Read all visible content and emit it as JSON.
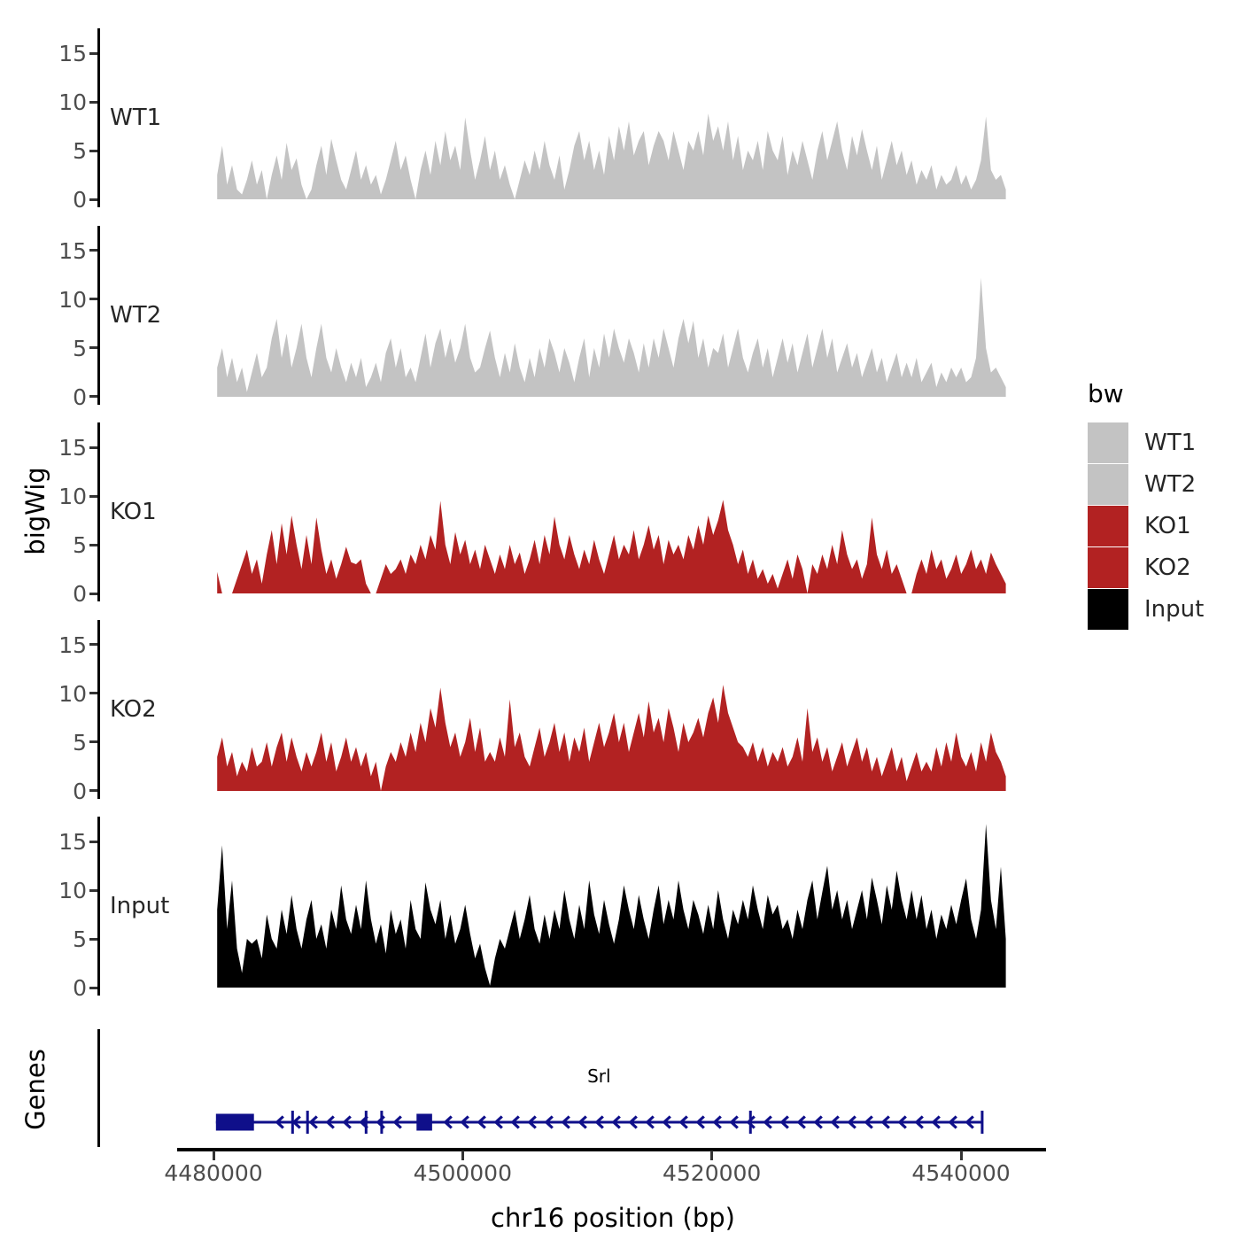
{
  "axes": {
    "y_title": "bigWig",
    "genes_title": "Genes",
    "x_title": "chr16 position (bp)",
    "x_tick_labels": [
      "4480000",
      "4500000",
      "4520000",
      "4540000"
    ],
    "y_tick_labels": [
      "0",
      "5",
      "10",
      "15"
    ]
  },
  "legend": {
    "title": "bw",
    "items": [
      {
        "label": "WT1",
        "color": "#c3c3c3"
      },
      {
        "label": "WT2",
        "color": "#c3c3c3"
      },
      {
        "label": "KO1",
        "color": "#b22222"
      },
      {
        "label": "KO2",
        "color": "#b22222"
      },
      {
        "label": "Input",
        "color": "#000000"
      }
    ]
  },
  "gene_label": "Srl",
  "chart_data": {
    "type": "area",
    "title": "",
    "xlabel": "chr16 position (bp)",
    "ylabel": "bigWig",
    "x_domain_bp": [
      4477000,
      4547000
    ],
    "x_ticks_bp": [
      4480000,
      4500000,
      4520000,
      4540000
    ],
    "ylim": [
      0,
      17.5
    ],
    "yticks": [
      0,
      5,
      10,
      15
    ],
    "grid": false,
    "legend_position": "right",
    "coverage_x_range_bp": [
      4480300,
      4543600
    ],
    "tracks": [
      {
        "name": "WT1",
        "color": "#c3c3c3",
        "values": [
          2.5,
          5.5,
          1.5,
          3.5,
          1,
          0.5,
          2,
          4,
          1.5,
          3,
          0,
          2.5,
          4.5,
          2,
          5.8,
          3,
          4.2,
          1.5,
          0,
          1,
          3.5,
          5.5,
          2.5,
          6.2,
          4,
          2,
          1,
          3,
          5,
          2,
          3.5,
          1.5,
          2.5,
          0.5,
          2,
          4,
          6,
          3,
          4.5,
          2,
          0,
          3,
          5,
          2.5,
          6,
          3.5,
          7,
          4,
          5.5,
          3,
          8.4,
          5,
          2,
          4,
          6.5,
          3,
          5,
          2,
          3.5,
          1.5,
          0,
          2,
          4,
          2.5,
          5,
          3,
          6,
          3.5,
          2,
          4.5,
          1,
          3,
          5.5,
          7,
          4,
          6,
          3,
          5,
          2.5,
          6.5,
          4,
          7.5,
          5,
          8,
          4.5,
          6,
          7,
          3.5,
          5.5,
          7,
          6,
          4,
          7,
          5,
          3,
          6,
          5,
          7,
          4.5,
          8.8,
          6,
          7.5,
          5,
          8,
          4,
          6.5,
          3,
          5,
          4,
          6,
          3,
          7,
          5,
          4,
          6.5,
          2.5,
          5,
          3.5,
          6,
          4,
          2,
          5,
          7,
          4,
          6,
          8,
          5,
          3,
          6.5,
          4.5,
          7.2,
          5,
          3,
          5.5,
          2,
          4,
          6,
          3.5,
          5,
          2.5,
          4,
          1.5,
          3,
          2,
          3.5,
          1,
          2.5,
          1.5,
          2,
          3.5,
          1.5,
          2.5,
          1,
          2,
          4,
          8.5,
          3,
          2,
          2.5,
          1
        ]
      },
      {
        "name": "WT2",
        "color": "#c3c3c3",
        "values": [
          3,
          5,
          2,
          4,
          1.5,
          3,
          0.5,
          2.5,
          4.5,
          2,
          3,
          6,
          8,
          4,
          6.5,
          3,
          5,
          7.5,
          4,
          2,
          5,
          7.5,
          4,
          2.5,
          5,
          3,
          1.5,
          3.5,
          2,
          4,
          1,
          2,
          3.5,
          1.5,
          4.5,
          6,
          3,
          5,
          2,
          3,
          1.5,
          4,
          6.5,
          3,
          5.5,
          7,
          4,
          6,
          3.5,
          5,
          7.5,
          4,
          2.5,
          3,
          5,
          6.8,
          4,
          2,
          4.5,
          2.5,
          5.5,
          3,
          1.5,
          4,
          2,
          5,
          3,
          6,
          4.5,
          2.5,
          5,
          3.5,
          1.5,
          4,
          6,
          2,
          5,
          3,
          6.5,
          4,
          7,
          5,
          3.5,
          6,
          4.5,
          2.5,
          5.5,
          3,
          6,
          4,
          7,
          5,
          3,
          6,
          8,
          5.5,
          7.8,
          4,
          6,
          3,
          5,
          4.5,
          6.5,
          3,
          5,
          7,
          4,
          2.5,
          4.5,
          6,
          3,
          5,
          2,
          4,
          6,
          3.5,
          5.5,
          2.5,
          4.5,
          6.5,
          3,
          5,
          7,
          4,
          6,
          2.5,
          4,
          5.5,
          3,
          4.5,
          2,
          3.5,
          5,
          2.5,
          4,
          1.5,
          3,
          4.5,
          2,
          3.5,
          2,
          4,
          1.5,
          2.5,
          3.5,
          1,
          2.5,
          1.5,
          3,
          2,
          3,
          1.5,
          2,
          4,
          12.2,
          5,
          2.5,
          3,
          2,
          1
        ]
      },
      {
        "name": "KO1",
        "color": "#b22222",
        "values": [
          2.2,
          0,
          0,
          0,
          1.5,
          3,
          4.5,
          2,
          3.5,
          1,
          4,
          6.5,
          3,
          7.2,
          4,
          8,
          5,
          2.5,
          6,
          3,
          7.8,
          4.5,
          2,
          3.5,
          1.5,
          3,
          4.8,
          3.2,
          3,
          3.5,
          1,
          0,
          0,
          1.5,
          3,
          2,
          2.5,
          3.5,
          2,
          4,
          3,
          5,
          3.5,
          6,
          4.5,
          9.5,
          5,
          3,
          6.3,
          4,
          5.5,
          3,
          4.5,
          2.5,
          5,
          3.5,
          2,
          4,
          2.5,
          5,
          3,
          4.2,
          2,
          3.5,
          5.5,
          3,
          6,
          4,
          7.9,
          5,
          3.5,
          6,
          4,
          2.5,
          4.5,
          3,
          5.5,
          3.5,
          2,
          4,
          6,
          3.5,
          5,
          4,
          6.5,
          3.5,
          5,
          7,
          4.5,
          6,
          3,
          5.5,
          4,
          5,
          3.5,
          6,
          4.5,
          7,
          5,
          8,
          6,
          7.5,
          9.6,
          6.5,
          5,
          3,
          4.5,
          2,
          3.5,
          1.5,
          2.5,
          1,
          2,
          0.5,
          2,
          3.5,
          1.5,
          4,
          2.5,
          0,
          3,
          2,
          4,
          2.5,
          5,
          3,
          6.5,
          4,
          2.5,
          3.5,
          1.5,
          3,
          7.8,
          4,
          2.5,
          4.5,
          2,
          3,
          1.5,
          0,
          0,
          2,
          3.5,
          2,
          4.5,
          2.5,
          3.5,
          1.5,
          2.5,
          4,
          2,
          3,
          4.5,
          2.5,
          3.5,
          2,
          4.2,
          3,
          2,
          1
        ]
      },
      {
        "name": "KO2",
        "color": "#b22222",
        "values": [
          3.5,
          5.5,
          2.5,
          4,
          1.5,
          3,
          2,
          4.5,
          2.5,
          3,
          5,
          2.5,
          4.5,
          6,
          3,
          5.5,
          3.5,
          2,
          4,
          2.5,
          4,
          6,
          3,
          5,
          2,
          3.5,
          5.5,
          3,
          4.5,
          2.5,
          4,
          1.5,
          3,
          0,
          2.5,
          4,
          3,
          5,
          3.5,
          6,
          4,
          7,
          5,
          8.5,
          6.5,
          10.6,
          7,
          4.5,
          6,
          3.5,
          5,
          7.5,
          4,
          6.5,
          3,
          4,
          3,
          5.5,
          3.5,
          9.4,
          4.5,
          6,
          3.5,
          2.5,
          4.5,
          6.5,
          3.5,
          5,
          7,
          4,
          6,
          3,
          5.5,
          4,
          6.5,
          3,
          5,
          7,
          4.5,
          6,
          8,
          5,
          7,
          4,
          6,
          8,
          5.5,
          9.2,
          6,
          7.5,
          5,
          8.5,
          6.5,
          4,
          7,
          5,
          6,
          7.5,
          5.5,
          8,
          9.6,
          7,
          10.9,
          8,
          6.5,
          5,
          4.5,
          3.5,
          5,
          3,
          4.5,
          2.5,
          4,
          3,
          4.5,
          2.5,
          3.5,
          5.5,
          3,
          8.5,
          4,
          5.5,
          3,
          4.5,
          2,
          3.5,
          5,
          2.5,
          4,
          5.5,
          3,
          4.5,
          2,
          3.5,
          1.5,
          3,
          4.5,
          2,
          3.5,
          1,
          2.5,
          4,
          2,
          3,
          2,
          4.5,
          2.5,
          5,
          3,
          6,
          3.5,
          2.5,
          4,
          2,
          5,
          3,
          6,
          4,
          3,
          1.5
        ]
      },
      {
        "name": "Input",
        "color": "#000000",
        "values": [
          8,
          14.6,
          6,
          11,
          4,
          1.5,
          5,
          4.5,
          5,
          3,
          7.5,
          5,
          4,
          8,
          5.5,
          9.5,
          6,
          4,
          7,
          9,
          5,
          6.5,
          4,
          8,
          6,
          10.5,
          7,
          5.5,
          8.5,
          6,
          11,
          7,
          4.5,
          6.5,
          3.5,
          8,
          5.5,
          7,
          4,
          9,
          6,
          5,
          10.8,
          8,
          6.5,
          9,
          5,
          7.5,
          4.5,
          6,
          8.5,
          5.5,
          3,
          4.5,
          2,
          0.2,
          3,
          5,
          4,
          6,
          8,
          5,
          7,
          9.5,
          6,
          4.5,
          7.5,
          5,
          8,
          6,
          10,
          7,
          5,
          8.5,
          6,
          11,
          7.5,
          5.5,
          9,
          6.5,
          4.5,
          7,
          10.5,
          8,
          6,
          9.5,
          7,
          5,
          8,
          10.5,
          6.5,
          9,
          7,
          11,
          8,
          6,
          9,
          7.5,
          5.5,
          8.5,
          6,
          10,
          7,
          5,
          8,
          6.5,
          9,
          7,
          10.5,
          8,
          6,
          9.5,
          7.5,
          8.5,
          6,
          7,
          5,
          8,
          6,
          9,
          11,
          7,
          9.8,
          12.5,
          8,
          10,
          7,
          9,
          6,
          8,
          10,
          7,
          11.3,
          9,
          6.5,
          10.5,
          8,
          12,
          9,
          7,
          10,
          7,
          9.5,
          6,
          8,
          5,
          7.5,
          6,
          8.5,
          6.5,
          9,
          11.2,
          7,
          5,
          8,
          16.8,
          9,
          6,
          12.4,
          5
        ]
      }
    ],
    "genes": {
      "track_label": "Genes",
      "items": [
        {
          "name": "Srl",
          "strand": "-",
          "start_bp": 4480200,
          "end_bp": 4541700,
          "exon_boxes_bp": [
            [
              4480200,
              4483250
            ],
            [
              4496300,
              4497550
            ]
          ],
          "exon_ticks_bp": [
            4486350,
            4487550,
            4492250,
            4493500,
            4523100
          ],
          "color": "#0f0f8a"
        }
      ]
    }
  }
}
